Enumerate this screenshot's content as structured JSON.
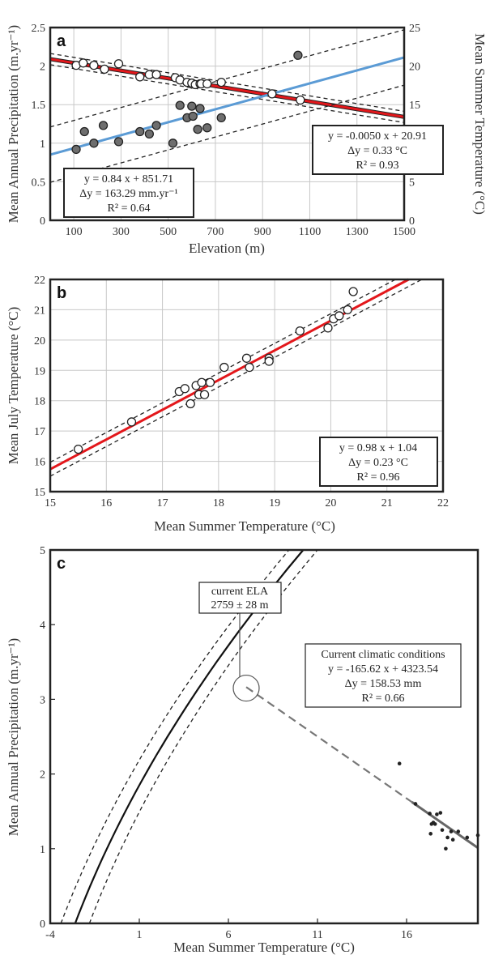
{
  "chart_data": [
    {
      "panel": "a",
      "type": "scatter",
      "xlabel": "Elevation (m)",
      "ylabel": "Mean Annual Precipitation (m.yr⁻¹)",
      "y2label": "Mean Summer Temperature (°C)",
      "xlim": [
        0,
        1500
      ],
      "ylim": [
        0,
        2.5
      ],
      "y2lim": [
        0,
        25
      ],
      "xticks": [
        100,
        300,
        500,
        700,
        900,
        1100,
        1300,
        1500
      ],
      "yticks": [
        0,
        0.5,
        1,
        1.5,
        2,
        2.5
      ],
      "y2ticks": [
        0,
        5,
        10,
        15,
        20,
        25
      ],
      "grid": true,
      "series": [
        {
          "marker": "open-circle",
          "axis": "y2",
          "x": [
            110,
            140,
            185,
            230,
            290,
            380,
            420,
            450,
            530,
            550,
            580,
            600,
            615,
            635,
            640,
            665,
            725,
            940,
            1060
          ],
          "values": [
            20.1,
            20.4,
            20.1,
            19.6,
            20.3,
            18.6,
            18.9,
            18.9,
            18.5,
            18.2,
            17.9,
            17.8,
            17.6,
            17.7,
            17.7,
            17.7,
            17.9,
            16.4,
            15.6
          ]
        },
        {
          "marker": "filled-circle",
          "axis": "y",
          "x": [
            110,
            145,
            185,
            225,
            290,
            380,
            420,
            450,
            520,
            550,
            580,
            600,
            605,
            625,
            635,
            665,
            725,
            1050
          ],
          "values": [
            0.92,
            1.15,
            1.0,
            1.23,
            1.02,
            1.15,
            1.12,
            1.23,
            1.0,
            1.49,
            1.33,
            1.48,
            1.35,
            1.18,
            1.45,
            1.2,
            1.33,
            2.14
          ]
        }
      ],
      "fits": [
        {
          "label": "temperature-fit",
          "axis": "y2",
          "slope": -0.005,
          "intercept": 20.91,
          "band": 0.33,
          "color": "#e3171b"
        },
        {
          "label": "precipitation-fit",
          "axis": "y",
          "slope": 0.00084,
          "intercept": 0.85171,
          "band": 0.16329,
          "color": "#5b9bd5"
        }
      ],
      "annotations": [
        {
          "lines": [
            "y = -0.0050 x + 20.91",
            "Δy = 0.33 °C",
            "R² = 0.93"
          ]
        },
        {
          "lines": [
            "y = 0.84 x + 851.71",
            "Δy = 163.29 mm.yr⁻¹",
            "R² = 0.64"
          ]
        }
      ]
    },
    {
      "panel": "b",
      "type": "scatter",
      "xlabel": "Mean Summer Temperature (°C)",
      "ylabel": "Mean July Temperature (°C)",
      "xlim": [
        15,
        22
      ],
      "ylim": [
        15,
        22
      ],
      "xticks": [
        15,
        16,
        17,
        18,
        19,
        20,
        21,
        22
      ],
      "yticks": [
        15,
        16,
        17,
        18,
        19,
        20,
        21,
        22
      ],
      "grid": true,
      "series": [
        {
          "marker": "open-circle",
          "x": [
            15.5,
            16.45,
            17.3,
            17.4,
            17.5,
            17.6,
            17.65,
            17.7,
            17.75,
            17.85,
            18.1,
            18.5,
            18.55,
            18.9,
            18.9,
            19.45,
            19.95,
            20.05,
            20.15,
            20.3,
            20.4
          ],
          "values": [
            16.4,
            17.3,
            18.3,
            18.4,
            17.9,
            18.5,
            18.2,
            18.6,
            18.2,
            18.6,
            19.1,
            19.4,
            19.1,
            19.4,
            19.3,
            20.3,
            20.4,
            20.7,
            20.8,
            21.0,
            21.6
          ]
        }
      ],
      "fits": [
        {
          "label": "july-fit",
          "slope": 0.98,
          "intercept": 1.04,
          "band": 0.23,
          "color": "#e3171b"
        }
      ],
      "annotations": [
        {
          "lines": [
            "y = 0.98 x + 1.04",
            "Δy = 0.23 °C",
            "R² = 0.96"
          ]
        }
      ]
    },
    {
      "panel": "c",
      "type": "scatter",
      "xlabel": "Mean Summer Temperature (°C)",
      "ylabel": "Mean Annual Precipitation (m.yr⁻¹)",
      "xlim": [
        -4,
        20
      ],
      "ylim": [
        0,
        5
      ],
      "xticks": [
        -4,
        1,
        6,
        11,
        16
      ],
      "yticks": [
        0,
        1,
        2,
        3,
        4,
        5
      ],
      "grid": false,
      "series": [
        {
          "marker": "dot",
          "x": [
            15.6,
            16.5,
            17.3,
            17.35,
            17.4,
            17.5,
            17.6,
            17.7,
            17.9,
            18.0,
            18.2,
            18.3,
            18.5,
            18.6,
            18.9,
            19.4,
            20.0
          ],
          "values": [
            2.14,
            1.6,
            1.47,
            1.2,
            1.33,
            1.35,
            1.33,
            1.46,
            1.48,
            1.25,
            1.0,
            1.15,
            1.23,
            1.12,
            1.23,
            1.15,
            1.18
          ]
        }
      ],
      "ela_curve": {
        "x_at_0": -2.6,
        "x_at_5": 10.2,
        "band_offset": 0.8
      },
      "regression": {
        "slope": -165.62,
        "intercept": 4323.54,
        "x_solid_from": 16.3,
        "x_solid_to": 20,
        "x_dashed_from": 7.0
      },
      "ela_point": {
        "x": 7.0,
        "y": 3.15
      },
      "annotations": [
        {
          "lines": [
            "current ELA",
            "2759 ± 28 m"
          ]
        },
        {
          "lines": [
            "Current climatic conditions",
            "y = -165.62 x + 4323.54",
            "Δy = 158.53 mm",
            "R² = 0.66"
          ]
        }
      ]
    }
  ]
}
